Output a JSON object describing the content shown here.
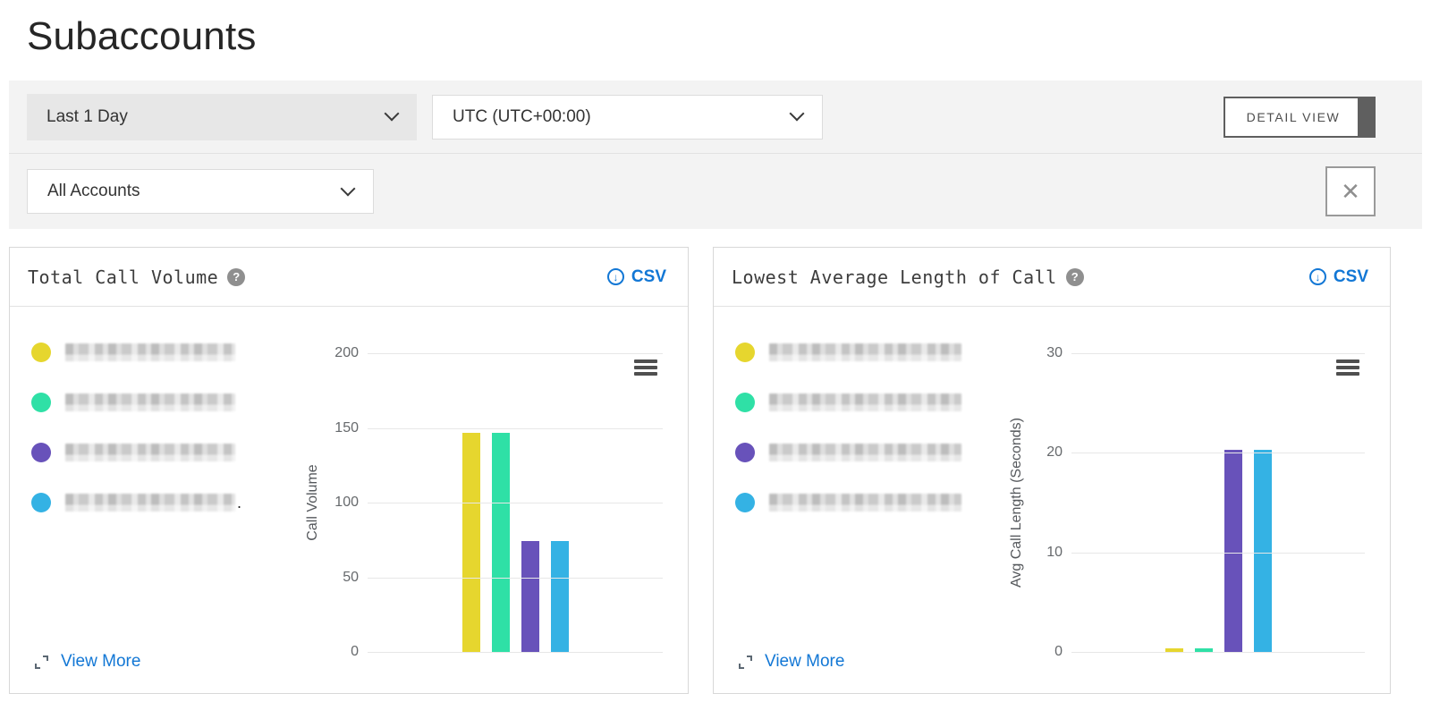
{
  "page": {
    "title": "Subaccounts"
  },
  "filters": {
    "time_range_value": "Last 1 Day",
    "timezone_value": "UTC (UTC+00:00)",
    "detail_view_label": "DETAIL VIEW",
    "accounts_value": "All Accounts",
    "close_icon": "✕"
  },
  "icons": {
    "help": "?",
    "download_arrow": "↓"
  },
  "colors": {
    "link_blue": "#1277d5",
    "series": [
      "#e6d62e",
      "#2fe0a6",
      "#6852ba",
      "#34b2e4"
    ]
  },
  "cards": [
    {
      "title": "Total Call Volume",
      "help_icon": "?",
      "csv_label": "CSV",
      "view_more_label": "View More",
      "legend": [
        {
          "name": "subaccount-1 (redacted)",
          "color": "#e6d62e",
          "suffix": ""
        },
        {
          "name": "subaccount-2 (redacted)",
          "color": "#2fe0a6",
          "suffix": ""
        },
        {
          "name": "subaccount-3 (redacted)",
          "color": "#6852ba",
          "suffix": ""
        },
        {
          "name": "subaccount-4 (redacted)",
          "color": "#34b2e4",
          "suffix": "."
        }
      ],
      "chart_data": {
        "type": "bar",
        "categories": [
          "subaccount-1 (redacted)",
          "subaccount-2 (redacted)",
          "subaccount-3 (redacted)",
          "subaccount-4 (redacted)"
        ],
        "values": [
          147,
          147,
          74,
          74
        ],
        "colors": [
          "#e6d62e",
          "#2fe0a6",
          "#6852ba",
          "#34b2e4"
        ],
        "title": "Total Call Volume",
        "xlabel": "",
        "ylabel": "Call Volume",
        "ylim": [
          0,
          200
        ],
        "yticks": [
          0,
          50,
          100,
          150,
          200
        ],
        "grid": true,
        "x_tick_labels": "none",
        "legend_position": "left"
      }
    },
    {
      "title": "Lowest Average Length of Call",
      "help_icon": "?",
      "csv_label": "CSV",
      "view_more_label": "View More",
      "legend": [
        {
          "name": "subaccount-1 (redacted)",
          "color": "#e6d62e",
          "suffix": ""
        },
        {
          "name": "subaccount-2 (redacted)",
          "color": "#2fe0a6",
          "suffix": ""
        },
        {
          "name": "subaccount-3 (redacted)",
          "color": "#6852ba",
          "suffix": ""
        },
        {
          "name": "subaccount-4 (redacted)",
          "color": "#34b2e4",
          "suffix": ""
        }
      ],
      "chart_data": {
        "type": "bar",
        "categories": [
          "subaccount-1 (redacted)",
          "subaccount-2 (redacted)",
          "subaccount-3 (redacted)",
          "subaccount-4 (redacted)"
        ],
        "values": [
          0.4,
          0.4,
          20.3,
          20.3
        ],
        "colors": [
          "#e6d62e",
          "#2fe0a6",
          "#6852ba",
          "#34b2e4"
        ],
        "title": "Lowest Average Length of Call",
        "xlabel": "",
        "ylabel": "Avg Call Length (Seconds)",
        "ylim": [
          0,
          30
        ],
        "yticks": [
          0,
          10,
          20,
          30
        ],
        "grid": true,
        "x_tick_labels": "none",
        "legend_position": "left"
      }
    }
  ]
}
